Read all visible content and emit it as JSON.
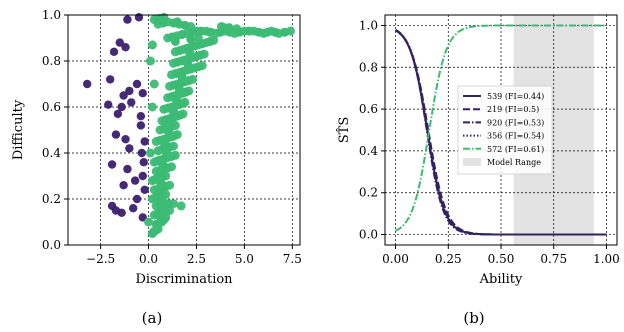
{
  "colors": {
    "purple": "#3b1f6e",
    "navy": "#33235f",
    "green": "#3cbb75",
    "grid": "#000000",
    "range": "#e3e3e3"
  },
  "chart_data": [
    {
      "type": "scatter",
      "panel_label": "(a)",
      "xlabel": "Discrimination",
      "ylabel": "Difficulty",
      "xlim": [
        -4.2,
        7.9
      ],
      "ylim": [
        0.0,
        1.0
      ],
      "xticks": [
        -2.5,
        0.0,
        2.5,
        5.0,
        7.5
      ],
      "xtick_labels": [
        "−2.5",
        "0.0",
        "2.5",
        "5.0",
        "7.5"
      ],
      "yticks": [
        0.0,
        0.2,
        0.4,
        0.6,
        0.8,
        1.0
      ],
      "ytick_labels": [
        "0.0",
        "0.2",
        "0.4",
        "0.6",
        "0.8",
        "1.0"
      ],
      "grid": true,
      "series": [
        {
          "color": "#3b1f6e",
          "points": [
            [
              -3.2,
              0.7
            ],
            [
              -2.0,
              0.72
            ],
            [
              -1.8,
              0.84
            ],
            [
              -1.5,
              0.88
            ],
            [
              -1.2,
              0.86
            ],
            [
              -1.1,
              0.98
            ],
            [
              -0.5,
              0.99
            ],
            [
              -1.3,
              0.65
            ],
            [
              -1.0,
              0.67
            ],
            [
              -0.9,
              0.62
            ],
            [
              -1.4,
              0.6
            ],
            [
              -1.6,
              0.57
            ],
            [
              -2.1,
              0.61
            ],
            [
              -0.3,
              0.66
            ],
            [
              -0.6,
              0.7
            ],
            [
              -0.4,
              0.56
            ],
            [
              -1.7,
              0.48
            ],
            [
              -1.2,
              0.46
            ],
            [
              -1.0,
              0.42
            ],
            [
              -0.2,
              0.45
            ],
            [
              -1.9,
              0.35
            ],
            [
              -1.1,
              0.33
            ],
            [
              -0.3,
              0.3
            ],
            [
              -0.2,
              0.24
            ],
            [
              -1.3,
              0.26
            ],
            [
              -1.9,
              0.17
            ],
            [
              -1.7,
              0.15
            ],
            [
              -1.4,
              0.14
            ],
            [
              -0.8,
              0.16
            ],
            [
              -0.6,
              0.2
            ],
            [
              -0.3,
              0.12
            ],
            [
              -0.4,
              0.52
            ],
            [
              -0.25,
              0.36
            ],
            [
              -0.35,
              0.4
            ],
            [
              -0.7,
              0.28
            ]
          ]
        },
        {
          "color": "#3cbb75",
          "points": [
            [
              0.2,
              0.05
            ],
            [
              0.3,
              0.06
            ],
            [
              0.5,
              0.07
            ],
            [
              0.4,
              0.09
            ],
            [
              0.7,
              0.1
            ],
            [
              0.9,
              0.12
            ],
            [
              0.3,
              0.13
            ],
            [
              0.6,
              0.14
            ],
            [
              1.1,
              0.15
            ],
            [
              0.4,
              0.17
            ],
            [
              0.8,
              0.18
            ],
            [
              1.3,
              0.18
            ],
            [
              0.2,
              0.2
            ],
            [
              0.5,
              0.21
            ],
            [
              0.9,
              0.22
            ],
            [
              0.3,
              0.24
            ],
            [
              0.7,
              0.25
            ],
            [
              1.1,
              0.26
            ],
            [
              0.2,
              0.28
            ],
            [
              0.5,
              0.29
            ],
            [
              0.9,
              0.3
            ],
            [
              0.4,
              0.32
            ],
            [
              0.8,
              0.33
            ],
            [
              1.2,
              0.34
            ],
            [
              0.3,
              0.36
            ],
            [
              0.6,
              0.37
            ],
            [
              1.0,
              0.38
            ],
            [
              1.4,
              0.39
            ],
            [
              0.5,
              0.41
            ],
            [
              0.9,
              0.42
            ],
            [
              1.3,
              0.43
            ],
            [
              0.4,
              0.45
            ],
            [
              0.8,
              0.46
            ],
            [
              1.2,
              0.47
            ],
            [
              1.5,
              0.48
            ],
            [
              0.6,
              0.5
            ],
            [
              1.0,
              0.51
            ],
            [
              1.4,
              0.52
            ],
            [
              0.7,
              0.54
            ],
            [
              1.1,
              0.55
            ],
            [
              1.5,
              0.56
            ],
            [
              1.8,
              0.57
            ],
            [
              0.8,
              0.59
            ],
            [
              1.2,
              0.6
            ],
            [
              1.6,
              0.61
            ],
            [
              1.9,
              0.62
            ],
            [
              1.0,
              0.64
            ],
            [
              1.4,
              0.65
            ],
            [
              1.8,
              0.66
            ],
            [
              2.1,
              0.67
            ],
            [
              1.1,
              0.69
            ],
            [
              1.5,
              0.7
            ],
            [
              1.9,
              0.71
            ],
            [
              2.3,
              0.72
            ],
            [
              1.2,
              0.74
            ],
            [
              1.6,
              0.75
            ],
            [
              2.0,
              0.76
            ],
            [
              2.4,
              0.77
            ],
            [
              2.8,
              0.78
            ],
            [
              1.3,
              0.79
            ],
            [
              1.7,
              0.8
            ],
            [
              2.1,
              0.81
            ],
            [
              2.5,
              0.82
            ],
            [
              2.9,
              0.83
            ],
            [
              1.4,
              0.84
            ],
            [
              1.8,
              0.85
            ],
            [
              2.2,
              0.86
            ],
            [
              2.6,
              0.87
            ],
            [
              3.0,
              0.88
            ],
            [
              3.4,
              0.89
            ],
            [
              1.0,
              0.9
            ],
            [
              1.5,
              0.91
            ],
            [
              2.0,
              0.92
            ],
            [
              2.5,
              0.93
            ],
            [
              3.0,
              0.93
            ],
            [
              3.5,
              0.92
            ],
            [
              4.0,
              0.93
            ],
            [
              4.5,
              0.92
            ],
            [
              5.0,
              0.93
            ],
            [
              5.5,
              0.93
            ],
            [
              6.0,
              0.92
            ],
            [
              6.4,
              0.93
            ],
            [
              6.8,
              0.92
            ],
            [
              7.4,
              0.93
            ],
            [
              0.5,
              0.96
            ],
            [
              1.0,
              0.97
            ],
            [
              1.6,
              0.96
            ],
            [
              2.2,
              0.95
            ],
            [
              0.8,
              0.99
            ],
            [
              0.3,
              0.98
            ],
            [
              0.0,
              0.1
            ],
            [
              0.1,
              0.4
            ],
            [
              0.2,
              0.6
            ],
            [
              0.3,
              0.7
            ],
            [
              0.1,
              0.8
            ],
            [
              1.7,
              0.17
            ],
            [
              0.2,
              0.87
            ],
            [
              2.6,
              0.9
            ],
            [
              3.8,
              0.95
            ],
            [
              4.6,
              0.94
            ]
          ]
        }
      ]
    },
    {
      "type": "line",
      "panel_label": "(b)",
      "xlabel": "Ability",
      "ylabel": "ST̂S",
      "xlim": [
        -0.05,
        1.05
      ],
      "ylim": [
        -0.05,
        1.05
      ],
      "xticks": [
        0.0,
        0.25,
        0.5,
        0.75,
        1.0
      ],
      "xtick_labels": [
        "0.00",
        "0.25",
        "0.50",
        "0.75",
        "1.00"
      ],
      "yticks": [
        0.0,
        0.2,
        0.4,
        0.6,
        0.8,
        1.0
      ],
      "ytick_labels": [
        "0.0",
        "0.2",
        "0.4",
        "0.6",
        "0.8",
        "1.0"
      ],
      "grid": true,
      "model_range": [
        0.56,
        0.94
      ],
      "legend_position": "center-right",
      "series": [
        {
          "name": "539 (FI=0.44)",
          "style": "solid",
          "color": "#33235f",
          "a": 25,
          "b": 0.15
        },
        {
          "name": "219 (FI=0.5)",
          "style": "dashed",
          "color": "#33235f",
          "a": 24,
          "b": 0.155
        },
        {
          "name": "920 (FI=0.53)",
          "style": "dashdot",
          "color": "#33235f",
          "a": 26,
          "b": 0.148
        },
        {
          "name": "356 (FI=0.54)",
          "style": "dotted",
          "color": "#33235f",
          "a": 25,
          "b": 0.152
        },
        {
          "name": "572 (FI=0.61)",
          "style": "dashdot",
          "color": "#3cbb75",
          "a": -25,
          "b": 0.16
        }
      ],
      "legend_extra": "Model Range"
    }
  ]
}
